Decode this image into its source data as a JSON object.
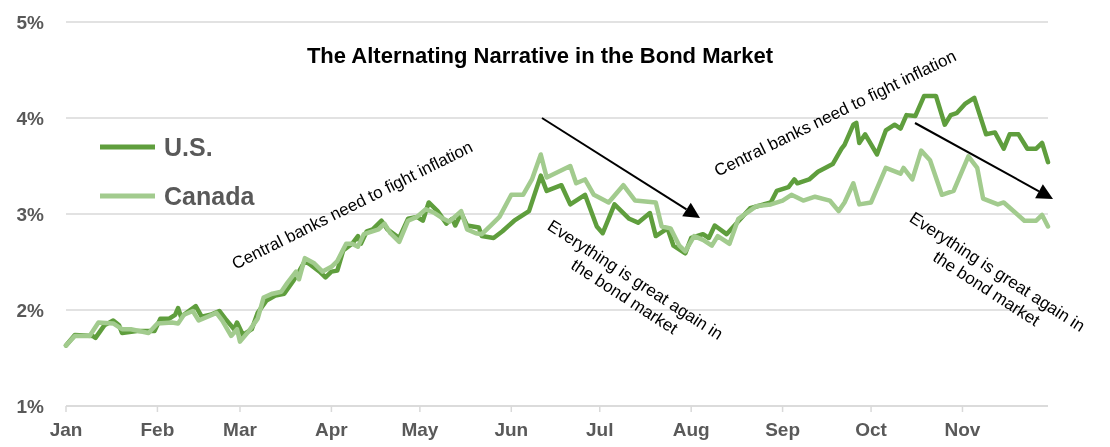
{
  "chart_data": {
    "type": "line",
    "title": "The Alternating Narrative in the Bond Market",
    "xlim": [
      "--01-01",
      "--11-30"
    ],
    "xticks": [
      {
        "value": "--01-01",
        "label": "Jan"
      },
      {
        "value": "--02-01",
        "label": "Feb"
      },
      {
        "value": "--03-01",
        "label": "Mar"
      },
      {
        "value": "--04-01",
        "label": "Apr"
      },
      {
        "value": "--05-01",
        "label": "May"
      },
      {
        "value": "--06-01",
        "label": "Jun"
      },
      {
        "value": "--07-01",
        "label": "Jul"
      },
      {
        "value": "--08-01",
        "label": "Aug"
      },
      {
        "value": "--09-01",
        "label": "Sep"
      },
      {
        "value": "--10-01",
        "label": "Oct"
      },
      {
        "value": "--11-01",
        "label": "Nov"
      }
    ],
    "ylim": [
      1,
      5
    ],
    "yticks": [
      {
        "value": 1,
        "label": "1%"
      },
      {
        "value": 2,
        "label": "2%"
      },
      {
        "value": 3,
        "label": "3%"
      },
      {
        "value": 4,
        "label": "4%"
      },
      {
        "value": 5,
        "label": "5%"
      }
    ],
    "grid": "y",
    "legend": "top left",
    "marker": "none",
    "line_style": "solid",
    "annotations": [
      "Central banks need to fight inflation",
      "Everything is great again in\nthe bond market",
      "Central banks need to fight inflation",
      "Everything is great again in\nthe bond market"
    ],
    "series": [
      {
        "name": "U.S.",
        "color": "#5f9e3d",
        "x": [
          "--01-01",
          "--01-04",
          "--01-10",
          "--01-11",
          "--01-14",
          "--01-17",
          "--01-19",
          "--01-20",
          "--01-25",
          "--01-31",
          "--02-02",
          "--02-05",
          "--02-07",
          "--02-08",
          "--02-09",
          "--02-14",
          "--02-16",
          "--02-19",
          "--02-22",
          "--02-24",
          "--02-27",
          "--02-28",
          "--03-02",
          "--03-05",
          "--03-07",
          "--03-10",
          "--03-13",
          "--03-16",
          "--03-19",
          "--03-21",
          "--03-23",
          "--03-25",
          "--03-28",
          "--03-30",
          "--04-01",
          "--04-03",
          "--04-05",
          "--04-08",
          "--04-10",
          "--04-11",
          "--04-13",
          "--04-15",
          "--04-18",
          "--04-20",
          "--04-24",
          "--04-27",
          "--04-30",
          "--05-02",
          "--05-04",
          "--05-07",
          "--05-10",
          "--05-12",
          "--05-13",
          "--05-15",
          "--05-17",
          "--05-21",
          "--05-22",
          "--05-26",
          "--05-29",
          "--06-02",
          "--06-07",
          "--06-11",
          "--06-13",
          "--06-18",
          "--06-21",
          "--06-26",
          "--06-30",
          "--07-02",
          "--07-06",
          "--07-11",
          "--07-14",
          "--07-18",
          "--07-20",
          "--07-24",
          "--07-26",
          "--07-30",
          "--08-01",
          "--08-05",
          "--08-07",
          "--08-09",
          "--08-13",
          "--08-16",
          "--08-21",
          "--08-28",
          "--08-30",
          "--09-03",
          "--09-05",
          "--09-06",
          "--09-10",
          "--09-13",
          "--09-18",
          "--09-21",
          "--09-22",
          "--09-25",
          "--09-26",
          "--09-27",
          "--09-29",
          "--10-03",
          "--10-06",
          "--10-09",
          "--10-11",
          "--10-13",
          "--10-16",
          "--10-19",
          "--10-23",
          "--10-26",
          "--10-28",
          "--10-30",
          "--11-02",
          "--11-05",
          "--11-09",
          "--11-12",
          "--11-15",
          "--11-17",
          "--11-20",
          "--11-23",
          "--11-26",
          "--11-28",
          "--11-30"
        ],
        "values": [
          1.63,
          1.74,
          1.73,
          1.71,
          1.84,
          1.89,
          1.84,
          1.76,
          1.78,
          1.78,
          1.91,
          1.91,
          1.95,
          2.02,
          1.93,
          2.04,
          1.93,
          1.95,
          1.99,
          1.91,
          1.8,
          1.87,
          1.74,
          1.8,
          1.97,
          2.1,
          2.15,
          2.17,
          2.3,
          2.4,
          2.51,
          2.47,
          2.4,
          2.34,
          2.4,
          2.41,
          2.62,
          2.69,
          2.77,
          2.69,
          2.82,
          2.84,
          2.93,
          2.84,
          2.75,
          2.95,
          2.97,
          2.93,
          3.12,
          3.03,
          2.9,
          2.95,
          2.88,
          3.01,
          2.88,
          2.86,
          2.77,
          2.75,
          2.82,
          2.93,
          3.03,
          3.4,
          3.24,
          3.3,
          3.1,
          3.2,
          2.87,
          2.8,
          3.1,
          2.95,
          2.91,
          3.01,
          2.77,
          2.85,
          2.67,
          2.59,
          2.75,
          2.79,
          2.75,
          2.88,
          2.79,
          2.89,
          3.06,
          3.12,
          3.24,
          3.28,
          3.36,
          3.32,
          3.36,
          3.44,
          3.52,
          3.68,
          3.72,
          3.93,
          3.95,
          3.74,
          3.83,
          3.62,
          3.87,
          3.93,
          3.89,
          4.03,
          4.02,
          4.23,
          4.23,
          3.93,
          4.03,
          4.05,
          4.15,
          4.21,
          3.83,
          3.85,
          3.68,
          3.83,
          3.83,
          3.68,
          3.68,
          3.74,
          3.54
        ]
      },
      {
        "name": "Canada",
        "color": "#a2cb8e",
        "x": [
          "--01-01",
          "--01-04",
          "--01-09",
          "--01-12",
          "--01-17",
          "--01-20",
          "--01-23",
          "--01-29",
          "--02-01",
          "--02-06",
          "--02-08",
          "--02-10",
          "--02-13",
          "--02-15",
          "--02-18",
          "--02-21",
          "--02-23",
          "--02-26",
          "--02-28",
          "--03-01",
          "--03-04",
          "--03-07",
          "--03-09",
          "--03-12",
          "--03-15",
          "--03-17",
          "--03-20",
          "--03-21",
          "--03-23",
          "--03-26",
          "--03-29",
          "--04-01",
          "--04-03",
          "--04-06",
          "--04-08",
          "--04-10",
          "--04-12",
          "--04-17",
          "--04-19",
          "--04-21",
          "--04-24",
          "--04-27",
          "--04-30",
          "--05-03",
          "--05-06",
          "--05-09",
          "--05-11",
          "--05-15",
          "--05-17",
          "--05-20",
          "--05-22",
          "--05-25",
          "--05-28",
          "--06-01",
          "--06-05",
          "--06-08",
          "--06-11",
          "--06-13",
          "--06-21",
          "--06-23",
          "--06-26",
          "--06-29",
          "--07-04",
          "--07-09",
          "--07-13",
          "--07-20",
          "--07-22",
          "--07-25",
          "--07-28",
          "--07-30",
          "--08-02",
          "--08-05",
          "--08-08",
          "--08-10",
          "--08-14",
          "--08-17",
          "--08-23",
          "--08-28",
          "--09-01",
          "--09-04",
          "--09-08",
          "--09-12",
          "--09-17",
          "--09-20",
          "--09-22",
          "--09-25",
          "--09-27",
          "--10-01",
          "--10-06",
          "--10-11",
          "--10-12",
          "--10-15",
          "--10-18",
          "--10-21",
          "--10-25",
          "--10-29",
          "--11-03",
          "--11-06",
          "--11-08",
          "--11-13",
          "--11-15",
          "--11-22",
          "--11-26",
          "--11-28",
          "--11-30"
        ],
        "values": [
          1.63,
          1.73,
          1.73,
          1.87,
          1.86,
          1.8,
          1.8,
          1.76,
          1.86,
          1.87,
          1.86,
          1.95,
          1.99,
          1.89,
          1.93,
          1.97,
          1.89,
          1.73,
          1.8,
          1.67,
          1.78,
          1.91,
          2.13,
          2.17,
          2.19,
          2.28,
          2.4,
          2.32,
          2.54,
          2.49,
          2.4,
          2.45,
          2.51,
          2.69,
          2.69,
          2.66,
          2.79,
          2.84,
          2.9,
          2.8,
          2.71,
          2.93,
          2.97,
          3.05,
          3.01,
          2.95,
          2.92,
          3.03,
          2.84,
          2.8,
          2.79,
          2.88,
          2.97,
          3.2,
          3.2,
          3.36,
          3.62,
          3.38,
          3.5,
          3.32,
          3.36,
          3.2,
          3.12,
          3.3,
          3.14,
          3.12,
          2.87,
          2.85,
          2.67,
          2.61,
          2.77,
          2.73,
          2.67,
          2.77,
          2.69,
          2.95,
          3.08,
          3.1,
          3.14,
          3.2,
          3.14,
          3.18,
          3.14,
          3.03,
          3.12,
          3.32,
          3.1,
          3.12,
          3.48,
          3.42,
          3.48,
          3.36,
          3.66,
          3.56,
          3.2,
          3.24,
          3.6,
          3.48,
          3.16,
          3.1,
          3.12,
          2.93,
          2.93,
          2.99,
          2.87
        ]
      }
    ]
  }
}
